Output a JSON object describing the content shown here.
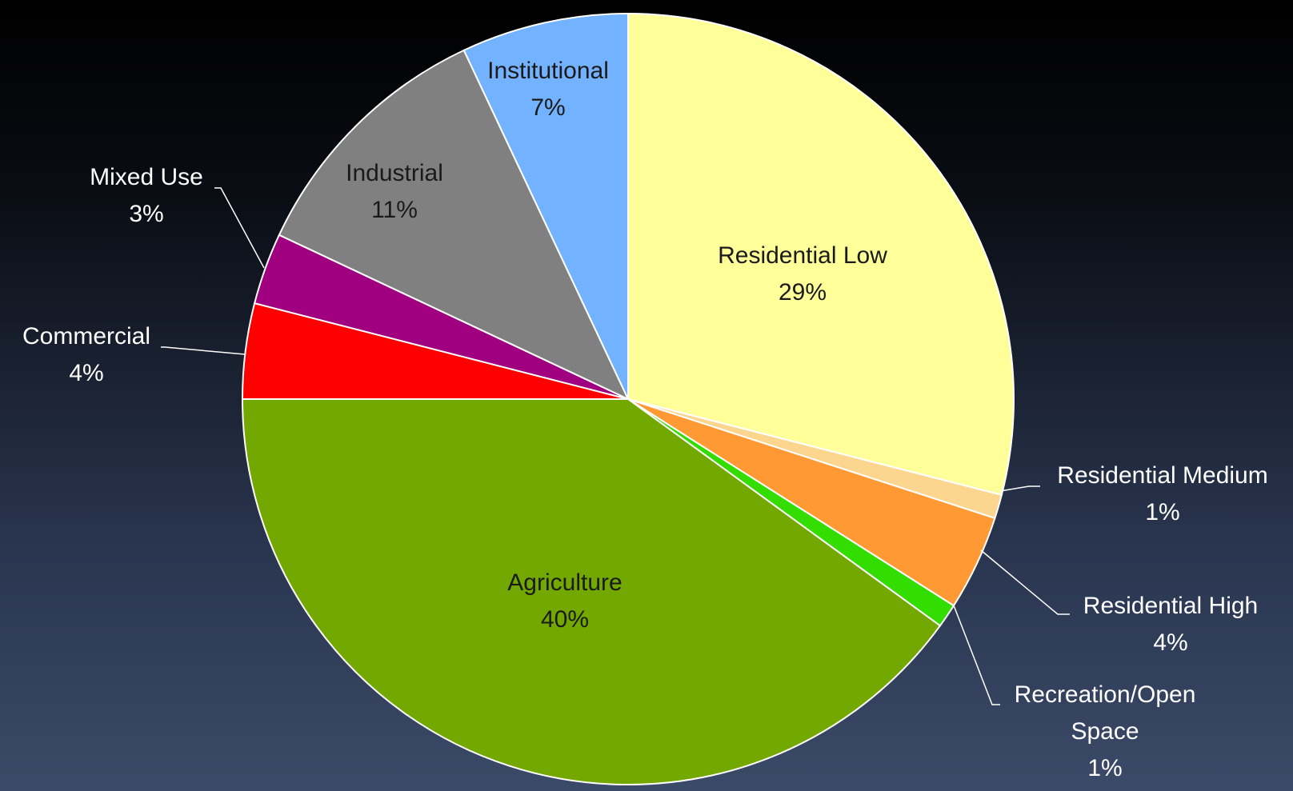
{
  "chart_data": {
    "type": "pie",
    "categories": [
      "Residential Low",
      "Residential Medium",
      "Residential High",
      "Recreation/Open Space",
      "Agriculture",
      "Commercial",
      "Mixed Use",
      "Industrial",
      "Institutional"
    ],
    "values": [
      29,
      1,
      4,
      1,
      40,
      4,
      3,
      11,
      7
    ],
    "value_labels": [
      "29%",
      "1%",
      "4%",
      "1%",
      "40%",
      "4%",
      "3%",
      "11%",
      "7%"
    ],
    "colors": [
      "#ffff99",
      "#fcd58f",
      "#ff9933",
      "#33dd00",
      "#72a800",
      "#ff0000",
      "#a0007f",
      "#808080",
      "#73b2ff"
    ]
  }
}
